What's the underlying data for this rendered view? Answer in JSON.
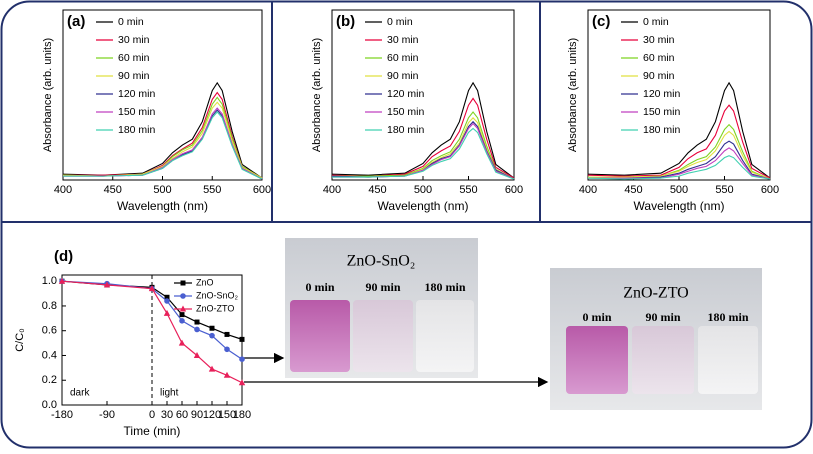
{
  "chart_data": [
    {
      "type": "line",
      "panel_label": "(a)",
      "x_label": "Wavelength (nm)",
      "y_label": "Absorbance (arb. units)",
      "x": [
        400,
        440,
        480,
        500,
        510,
        520,
        530,
        540,
        550,
        555,
        560,
        570,
        580,
        600
      ],
      "xlim": [
        400,
        600
      ],
      "xticks": [
        400,
        450,
        500,
        550,
        600
      ],
      "ylim": [
        0,
        1.75
      ],
      "series": [
        {
          "name": "0 min",
          "color": "#000000",
          "values": [
            0.06,
            0.05,
            0.07,
            0.17,
            0.28,
            0.36,
            0.42,
            0.6,
            0.92,
            1.0,
            0.92,
            0.5,
            0.16,
            0.02
          ]
        },
        {
          "name": "30 min",
          "color": "#e8003a",
          "values": [
            0.05,
            0.05,
            0.06,
            0.15,
            0.25,
            0.32,
            0.38,
            0.54,
            0.83,
            0.9,
            0.83,
            0.45,
            0.14,
            0.02
          ]
        },
        {
          "name": "60 min",
          "color": "#7ed321",
          "values": [
            0.05,
            0.04,
            0.06,
            0.14,
            0.24,
            0.31,
            0.36,
            0.51,
            0.78,
            0.85,
            0.78,
            0.43,
            0.14,
            0.02
          ]
        },
        {
          "name": "90 min",
          "color": "#e0e040",
          "values": [
            0.05,
            0.04,
            0.06,
            0.14,
            0.22,
            0.29,
            0.34,
            0.48,
            0.74,
            0.8,
            0.74,
            0.4,
            0.13,
            0.02
          ]
        },
        {
          "name": "120 min",
          "color": "#303090",
          "values": [
            0.04,
            0.04,
            0.05,
            0.12,
            0.2,
            0.26,
            0.3,
            0.43,
            0.66,
            0.72,
            0.66,
            0.36,
            0.12,
            0.01
          ]
        },
        {
          "name": "150 min",
          "color": "#c040c0",
          "values": [
            0.04,
            0.04,
            0.05,
            0.13,
            0.21,
            0.27,
            0.31,
            0.44,
            0.68,
            0.74,
            0.68,
            0.37,
            0.12,
            0.01
          ]
        },
        {
          "name": "180 min",
          "color": "#40d0b0",
          "values": [
            0.04,
            0.04,
            0.05,
            0.12,
            0.2,
            0.25,
            0.29,
            0.42,
            0.64,
            0.7,
            0.64,
            0.35,
            0.11,
            0.01
          ]
        }
      ]
    },
    {
      "type": "line",
      "panel_label": "(b)",
      "x_label": "Wavelength (nm)",
      "y_label": "Absorbance (arb. units)",
      "x": [
        400,
        440,
        480,
        500,
        510,
        520,
        530,
        540,
        550,
        555,
        560,
        570,
        580,
        600
      ],
      "xlim": [
        400,
        600
      ],
      "xticks": [
        400,
        450,
        500,
        550,
        600
      ],
      "ylim": [
        0,
        1.75
      ],
      "series": [
        {
          "name": "0 min",
          "color": "#000000",
          "values": [
            0.06,
            0.05,
            0.07,
            0.17,
            0.28,
            0.36,
            0.42,
            0.6,
            0.92,
            1.0,
            0.92,
            0.5,
            0.16,
            0.02
          ]
        },
        {
          "name": "30 min",
          "color": "#e8003a",
          "values": [
            0.05,
            0.04,
            0.06,
            0.14,
            0.24,
            0.3,
            0.35,
            0.5,
            0.77,
            0.84,
            0.77,
            0.42,
            0.13,
            0.02
          ]
        },
        {
          "name": "60 min",
          "color": "#7ed321",
          "values": [
            0.04,
            0.04,
            0.05,
            0.12,
            0.2,
            0.25,
            0.29,
            0.42,
            0.64,
            0.7,
            0.64,
            0.35,
            0.11,
            0.01
          ]
        },
        {
          "name": "90 min",
          "color": "#e0e040",
          "values": [
            0.04,
            0.03,
            0.04,
            0.11,
            0.18,
            0.23,
            0.27,
            0.38,
            0.59,
            0.64,
            0.59,
            0.32,
            0.1,
            0.01
          ]
        },
        {
          "name": "120 min",
          "color": "#303090",
          "values": [
            0.04,
            0.03,
            0.04,
            0.1,
            0.17,
            0.22,
            0.25,
            0.36,
            0.55,
            0.6,
            0.55,
            0.3,
            0.1,
            0.01
          ]
        },
        {
          "name": "150 min",
          "color": "#c040c0",
          "values": [
            0.03,
            0.03,
            0.04,
            0.1,
            0.16,
            0.21,
            0.24,
            0.35,
            0.53,
            0.58,
            0.53,
            0.29,
            0.09,
            0.01
          ]
        },
        {
          "name": "180 min",
          "color": "#40d0b0",
          "values": [
            0.03,
            0.03,
            0.04,
            0.09,
            0.15,
            0.19,
            0.22,
            0.32,
            0.49,
            0.53,
            0.49,
            0.27,
            0.08,
            0.01
          ]
        }
      ]
    },
    {
      "type": "line",
      "panel_label": "(c)",
      "x_label": "Wavelength (nm)",
      "y_label": "Absorbance (arb. units)",
      "x": [
        400,
        440,
        480,
        500,
        510,
        520,
        530,
        540,
        550,
        555,
        560,
        570,
        580,
        600
      ],
      "xlim": [
        400,
        600
      ],
      "xticks": [
        400,
        450,
        500,
        550,
        600
      ],
      "ylim": [
        0,
        1.75
      ],
      "series": [
        {
          "name": "0 min",
          "color": "#000000",
          "values": [
            0.06,
            0.05,
            0.07,
            0.17,
            0.28,
            0.36,
            0.42,
            0.6,
            0.92,
            1.0,
            0.92,
            0.5,
            0.16,
            0.02
          ]
        },
        {
          "name": "30 min",
          "color": "#e8003a",
          "values": [
            0.05,
            0.04,
            0.05,
            0.13,
            0.22,
            0.28,
            0.32,
            0.46,
            0.71,
            0.77,
            0.71,
            0.39,
            0.12,
            0.02
          ]
        },
        {
          "name": "60 min",
          "color": "#7ed321",
          "values": [
            0.03,
            0.03,
            0.04,
            0.1,
            0.16,
            0.21,
            0.24,
            0.34,
            0.52,
            0.57,
            0.52,
            0.29,
            0.09,
            0.01
          ]
        },
        {
          "name": "90 min",
          "color": "#e0e040",
          "values": [
            0.03,
            0.03,
            0.04,
            0.09,
            0.14,
            0.18,
            0.21,
            0.3,
            0.46,
            0.5,
            0.46,
            0.25,
            0.08,
            0.01
          ]
        },
        {
          "name": "120 min",
          "color": "#303090",
          "values": [
            0.02,
            0.02,
            0.03,
            0.07,
            0.11,
            0.14,
            0.17,
            0.24,
            0.37,
            0.4,
            0.37,
            0.2,
            0.06,
            0.01
          ]
        },
        {
          "name": "150 min",
          "color": "#c040c0",
          "values": [
            0.02,
            0.02,
            0.02,
            0.06,
            0.09,
            0.12,
            0.14,
            0.2,
            0.3,
            0.33,
            0.3,
            0.17,
            0.05,
            0.01
          ]
        },
        {
          "name": "180 min",
          "color": "#40d0b0",
          "values": [
            0.02,
            0.01,
            0.02,
            0.04,
            0.07,
            0.09,
            0.11,
            0.15,
            0.23,
            0.25,
            0.23,
            0.13,
            0.04,
            0.01
          ]
        }
      ]
    },
    {
      "type": "line",
      "panel_label": "(d)",
      "x_label": "Time (min)",
      "y_label": "C/C₀",
      "x": [
        -180,
        -90,
        0,
        30,
        60,
        90,
        120,
        150,
        180
      ],
      "xlim": [
        -180,
        180
      ],
      "xticks": [
        -180,
        -90,
        0,
        30,
        60,
        90,
        120,
        150,
        180
      ],
      "ylim": [
        0,
        1.05
      ],
      "yticks": [
        {
          "value": 0,
          "label": "0.0"
        },
        {
          "value": 0.2,
          "label": "0.2"
        },
        {
          "value": 0.4,
          "label": "0.4"
        },
        {
          "value": 0.6,
          "label": "0.6"
        },
        {
          "value": 0.8,
          "label": "0.8"
        },
        {
          "value": 1,
          "label": "1.0"
        }
      ],
      "divider_x": 0,
      "annotations": [
        "dark",
        "light"
      ],
      "series": [
        {
          "name": "ZnO",
          "color": "#000000",
          "marker": "square",
          "values": [
            1.0,
            0.97,
            0.95,
            0.87,
            0.73,
            0.67,
            0.62,
            0.57,
            0.53
          ]
        },
        {
          "name": "ZnO-SnO₂",
          "color": "#4a5fd0",
          "marker": "circle",
          "values": [
            1.0,
            0.98,
            0.94,
            0.84,
            0.68,
            0.61,
            0.56,
            0.45,
            0.37
          ]
        },
        {
          "name": "ZnO-ZTO",
          "color": "#e8205a",
          "marker": "triangle",
          "values": [
            1.0,
            0.97,
            0.94,
            0.74,
            0.5,
            0.4,
            0.29,
            0.24,
            0.18
          ]
        }
      ]
    }
  ],
  "photos": [
    {
      "title": "ZnO-SnO₂",
      "labels": [
        "0 min",
        "90 min",
        "180 min"
      ]
    },
    {
      "title": "ZnO-ZTO",
      "labels": [
        "0 min",
        "90 min",
        "180 min"
      ]
    }
  ]
}
